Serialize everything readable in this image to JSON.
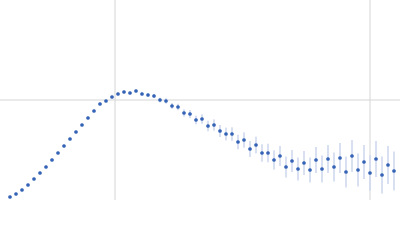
{
  "chart_data": {
    "type": "scatter",
    "x": [
      10,
      16,
      22,
      28,
      34,
      40,
      46,
      52,
      58,
      64,
      70,
      76,
      82,
      88,
      94,
      100,
      106,
      112,
      118,
      124,
      130,
      136,
      142,
      148,
      154,
      160,
      166,
      172,
      178,
      184,
      190,
      196,
      202,
      208,
      214,
      220,
      226,
      232,
      238,
      244,
      250,
      256,
      262,
      268,
      274,
      280,
      286,
      292,
      298,
      304,
      310,
      316,
      322,
      328,
      334,
      340,
      346,
      352,
      358,
      364,
      370,
      376,
      382,
      388,
      394
    ],
    "values": [
      3,
      6,
      10,
      15,
      21,
      27,
      33,
      40,
      47,
      54,
      61,
      68,
      75,
      82,
      89,
      96,
      99,
      103,
      106,
      108,
      107,
      109,
      106,
      105,
      104,
      100,
      99,
      94,
      93,
      87,
      86,
      80,
      81,
      74,
      75,
      69,
      66,
      66,
      58,
      60,
      51,
      55,
      47,
      47,
      40,
      44,
      33,
      39,
      31,
      37,
      30,
      40,
      31,
      41,
      33,
      42,
      28,
      44,
      30,
      38,
      27,
      41,
      25,
      35,
      29
    ],
    "errors": [
      0.3,
      0.3,
      0.3,
      0.3,
      0.4,
      0.4,
      0.4,
      0.4,
      0.5,
      0.5,
      0.5,
      0.6,
      0.6,
      0.7,
      0.7,
      0.8,
      0.9,
      1,
      1.1,
      1.2,
      1.3,
      1.5,
      1.7,
      1.9,
      2.1,
      2.4,
      2.7,
      3,
      3.3,
      3.6,
      4,
      4.4,
      4.8,
      5.2,
      5.6,
      6,
      6.4,
      6.8,
      7.2,
      7.6,
      8,
      8.4,
      8.8,
      9.2,
      9.6,
      10,
      10.5,
      11,
      11.5,
      12,
      12.5,
      13,
      13.5,
      14,
      14.5,
      15,
      15.5,
      16,
      16.5,
      17,
      17.5,
      18,
      18.5,
      19,
      19.5
    ],
    "color": "#3563b5",
    "error_color": "#9db2dd",
    "xlim": [
      0,
      400
    ],
    "ylim": [
      0,
      200
    ],
    "xticks": [
      115,
      370
    ],
    "yticks": [
      100
    ],
    "grid": true
  }
}
